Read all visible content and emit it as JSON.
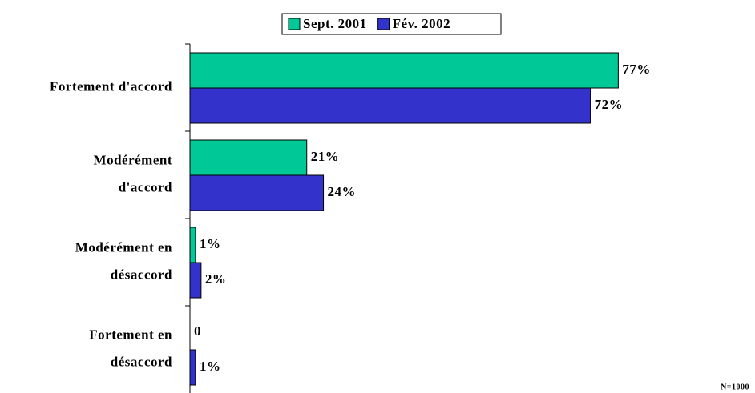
{
  "chart_data": {
    "type": "hbar",
    "categories": [
      [
        "Fortement d'accord"
      ],
      [
        "Modérément",
        "d'accord"
      ],
      [
        "Modérément en",
        "désaccord"
      ],
      [
        "Fortement en",
        "désaccord"
      ]
    ],
    "series": [
      {
        "name": "Sept. 2001",
        "color": "#00c896",
        "values": [
          77,
          21,
          1,
          0
        ],
        "value_labels": [
          "77%",
          "21%",
          "1%",
          "0"
        ]
      },
      {
        "name": "Fév. 2002",
        "color": "#3333cc",
        "values": [
          72,
          24,
          2,
          1
        ],
        "value_labels": [
          "72%",
          "24%",
          "2%",
          "1%"
        ]
      }
    ],
    "xlim": [
      0,
      100
    ],
    "legend": "top",
    "note": "N=1000"
  }
}
